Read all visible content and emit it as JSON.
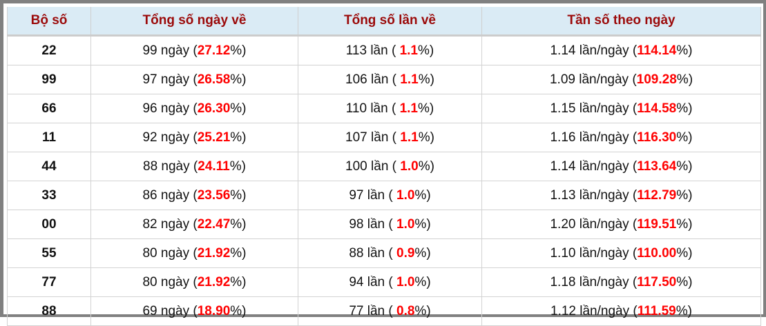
{
  "headers": [
    "Bộ số",
    "Tổng số ngày về",
    "Tổng số lần về",
    "Tần số theo ngày"
  ],
  "rows": [
    {
      "num": "22",
      "days": "99 ngày (",
      "days_pct": "27.12",
      "times": "113 lần ( ",
      "times_pct": "1.1",
      "freq": "1.14 lần/ngày (",
      "freq_pct": "114.14"
    },
    {
      "num": "99",
      "days": "97 ngày (",
      "days_pct": "26.58",
      "times": "106 lần ( ",
      "times_pct": "1.1",
      "freq": "1.09 lần/ngày (",
      "freq_pct": "109.28"
    },
    {
      "num": "66",
      "days": "96 ngày (",
      "days_pct": "26.30",
      "times": "110 lần ( ",
      "times_pct": "1.1",
      "freq": "1.15 lần/ngày (",
      "freq_pct": "114.58"
    },
    {
      "num": "11",
      "days": "92 ngày (",
      "days_pct": "25.21",
      "times": "107 lần ( ",
      "times_pct": "1.1",
      "freq": "1.16 lần/ngày (",
      "freq_pct": "116.30"
    },
    {
      "num": "44",
      "days": "88 ngày (",
      "days_pct": "24.11",
      "times": "100 lần ( ",
      "times_pct": "1.0",
      "freq": "1.14 lần/ngày (",
      "freq_pct": "113.64"
    },
    {
      "num": "33",
      "days": "86 ngày (",
      "days_pct": "23.56",
      "times": "97 lần ( ",
      "times_pct": "1.0",
      "freq": "1.13 lần/ngày (",
      "freq_pct": "112.79"
    },
    {
      "num": "00",
      "days": "82 ngày (",
      "days_pct": "22.47",
      "times": "98 lần ( ",
      "times_pct": "1.0",
      "freq": "1.20 lần/ngày (",
      "freq_pct": "119.51"
    },
    {
      "num": "55",
      "days": "80 ngày (",
      "days_pct": "21.92",
      "times": "88 lần ( ",
      "times_pct": "0.9",
      "freq": "1.10 lần/ngày (",
      "freq_pct": "110.00"
    },
    {
      "num": "77",
      "days": "80 ngày (",
      "days_pct": "21.92",
      "times": "94 lần ( ",
      "times_pct": "1.0",
      "freq": "1.18 lần/ngày (",
      "freq_pct": "117.50"
    },
    {
      "num": "88",
      "days": "69 ngày (",
      "days_pct": "18.90",
      "times": "77 lần ( ",
      "times_pct": "0.8",
      "freq": "1.12 lần/ngày (",
      "freq_pct": "111.59"
    }
  ],
  "pct_suffix": "%)",
  "colors": {
    "header_bg": "#daebf5",
    "header_text": "#9b0a0a",
    "highlight": "#ff0000"
  }
}
